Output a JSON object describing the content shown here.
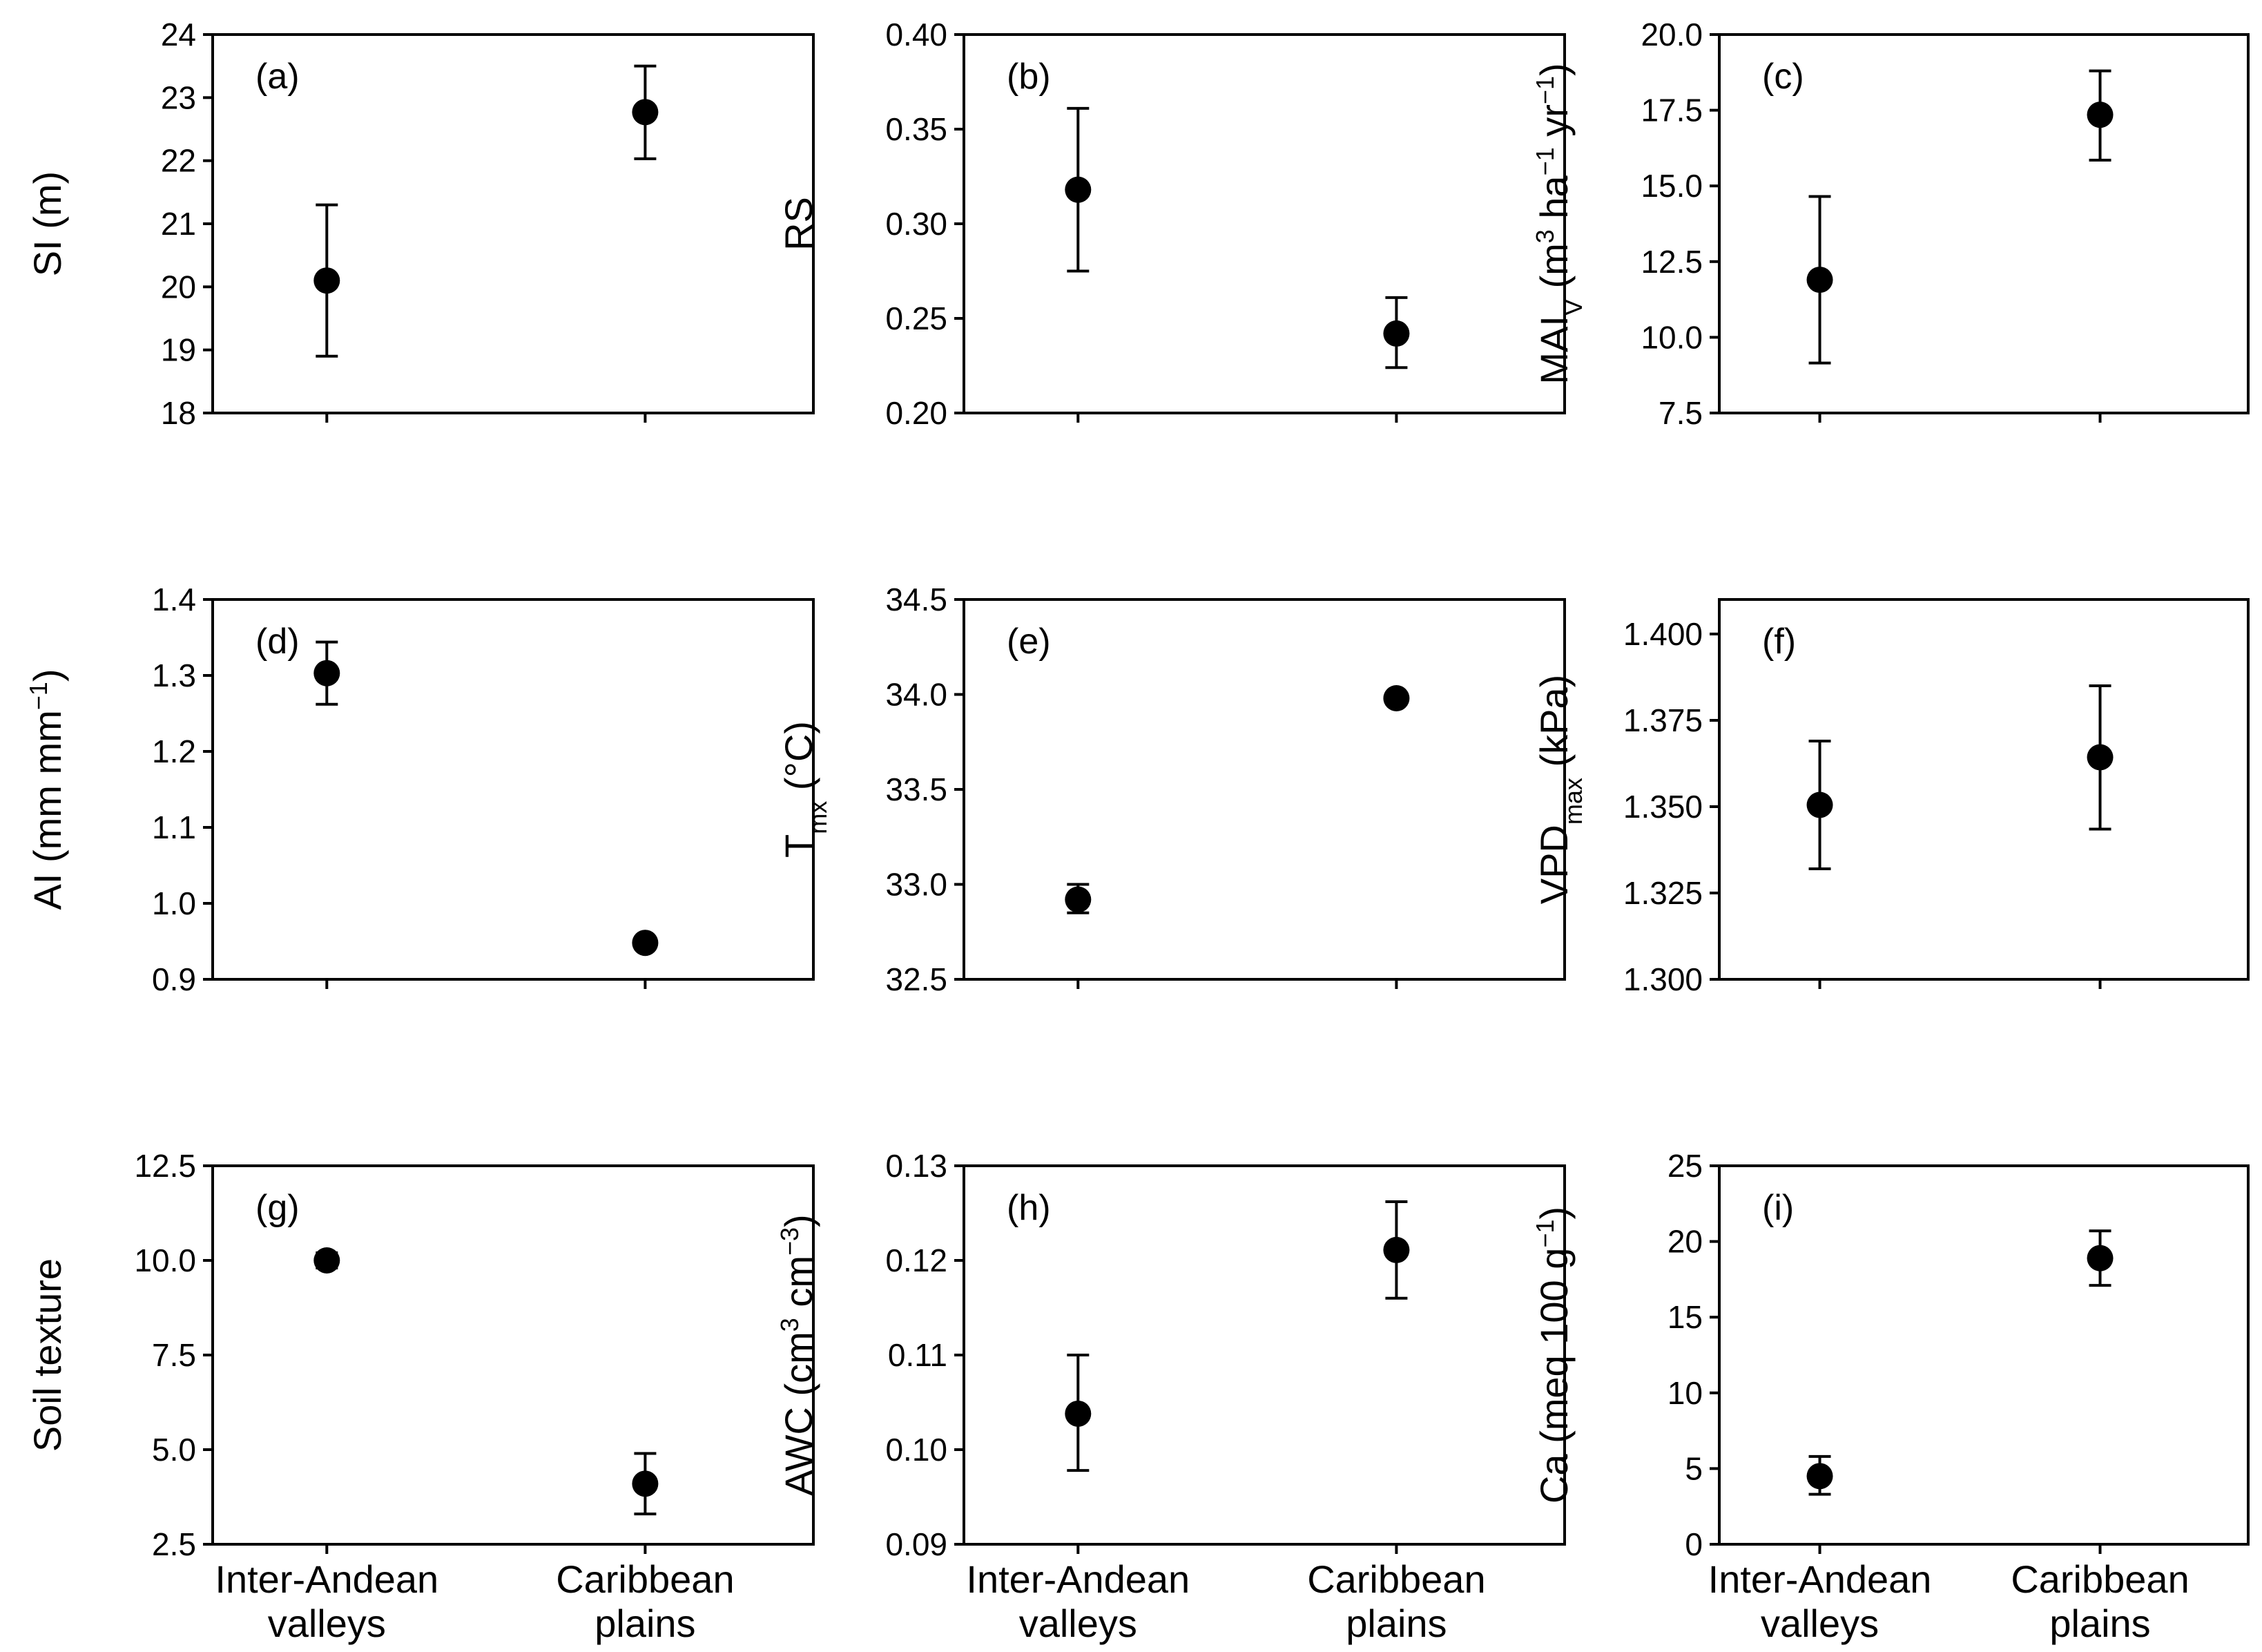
{
  "chart_data": [
    {
      "type": "scatter",
      "panel": "(a)",
      "ylabel": {
        "parts": [
          {
            "t": "SI (m)"
          }
        ]
      },
      "ylim": [
        18,
        24
      ],
      "yticks": [
        "18",
        "19",
        "20",
        "21",
        "22",
        "23",
        "24"
      ],
      "categories": [
        "Inter-Andean valleys",
        "Caribbean plains"
      ],
      "values": [
        20.1,
        22.77
      ],
      "err_low": [
        18.9,
        22.03
      ],
      "err_high": [
        21.3,
        23.5
      ]
    },
    {
      "type": "scatter",
      "panel": "(b)",
      "ylabel": {
        "parts": [
          {
            "t": "RS"
          }
        ]
      },
      "ylim": [
        0.2,
        0.4
      ],
      "yticks": [
        "0.20",
        "0.25",
        "0.30",
        "0.35",
        "0.40"
      ],
      "categories": [
        "Inter-Andean valleys",
        "Caribbean plains"
      ],
      "values": [
        0.318,
        0.242
      ],
      "err_low": [
        0.275,
        0.224
      ],
      "err_high": [
        0.361,
        0.261
      ]
    },
    {
      "type": "scatter",
      "panel": "(c)",
      "ylabel": {
        "parts": [
          {
            "t": "MAI"
          },
          {
            "t": "V",
            "s": "sub"
          },
          {
            "t": " (m"
          },
          {
            "t": "3",
            "s": "sup"
          },
          {
            "t": " ha"
          },
          {
            "t": "−1",
            "s": "sup"
          },
          {
            "t": " yr"
          },
          {
            "t": "−1",
            "s": "sup"
          },
          {
            "t": ")"
          }
        ]
      },
      "ylim": [
        7.5,
        20
      ],
      "yticks": [
        "7.5",
        "10.0",
        "12.5",
        "15.0",
        "17.5",
        "20.0"
      ],
      "categories": [
        "Inter-Andean valleys",
        "Caribbean plains"
      ],
      "values": [
        11.9,
        17.35
      ],
      "err_low": [
        9.15,
        15.85
      ],
      "err_high": [
        14.65,
        18.8
      ]
    },
    {
      "type": "scatter",
      "panel": "(d)",
      "ylabel": {
        "parts": [
          {
            "t": "AI (mm mm"
          },
          {
            "t": "−1",
            "s": "sup"
          },
          {
            "t": ")"
          }
        ]
      },
      "ylim": [
        0.9,
        1.4
      ],
      "yticks": [
        "0.9",
        "1.0",
        "1.1",
        "1.2",
        "1.3",
        "1.4"
      ],
      "categories": [
        "Inter-Andean valleys",
        "Caribbean plains"
      ],
      "values": [
        1.303,
        0.948
      ],
      "err_low": [
        1.262,
        0.948
      ],
      "err_high": [
        1.344,
        0.948
      ]
    },
    {
      "type": "scatter",
      "panel": "(e)",
      "ylabel": {
        "parts": [
          {
            "t": "T"
          },
          {
            "t": "mx",
            "s": "sub"
          },
          {
            "t": " (°C)"
          }
        ]
      },
      "ylim": [
        32.5,
        34.5
      ],
      "yticks": [
        "32.5",
        "33.0",
        "33.5",
        "34.0",
        "34.5"
      ],
      "categories": [
        "Inter-Andean valleys",
        "Caribbean plains"
      ],
      "values": [
        32.92,
        33.98
      ],
      "err_low": [
        32.85,
        33.98
      ],
      "err_high": [
        33.0,
        33.98
      ]
    },
    {
      "type": "scatter",
      "panel": "(f)",
      "ylabel": {
        "parts": [
          {
            "t": "VPD"
          },
          {
            "t": "max",
            "s": "sub"
          },
          {
            "t": " (kPa)"
          }
        ]
      },
      "ylim": [
        1.3,
        1.41
      ],
      "yticks": [
        "1.300",
        "1.325",
        "1.350",
        "1.375",
        "1.400"
      ],
      "categories": [
        "Inter-Andean valleys",
        "Caribbean plains"
      ],
      "values": [
        1.3505,
        1.3643
      ],
      "err_low": [
        1.332,
        1.3435
      ],
      "err_high": [
        1.369,
        1.385
      ]
    },
    {
      "type": "scatter",
      "panel": "(g)",
      "ylabel": {
        "parts": [
          {
            "t": "Soil texture"
          }
        ]
      },
      "ylim": [
        2.5,
        12.5
      ],
      "yticks": [
        "2.5",
        "5.0",
        "7.5",
        "10.0",
        "12.5"
      ],
      "categories": [
        "Inter-Andean valleys",
        "Caribbean plains"
      ],
      "values": [
        10.0,
        4.1
      ],
      "err_low": [
        9.8,
        3.3
      ],
      "err_high": [
        10.2,
        4.9
      ]
    },
    {
      "type": "scatter",
      "panel": "(h)",
      "ylabel": {
        "parts": [
          {
            "t": "AWC (cm"
          },
          {
            "t": "3",
            "s": "sup"
          },
          {
            "t": " cm"
          },
          {
            "t": "−3",
            "s": "sup"
          },
          {
            "t": ")"
          }
        ]
      },
      "ylim": [
        0.09,
        0.13
      ],
      "yticks": [
        "0.09",
        "0.10",
        "0.11",
        "0.12",
        "0.13"
      ],
      "categories": [
        "Inter-Andean valleys",
        "Caribbean plains"
      ],
      "values": [
        0.1038,
        0.1211
      ],
      "err_low": [
        0.0978,
        0.116
      ],
      "err_high": [
        0.11,
        0.1262
      ]
    },
    {
      "type": "scatter",
      "panel": "(i)",
      "ylabel": {
        "parts": [
          {
            "t": "Ca (meq 100 g"
          },
          {
            "t": "−1",
            "s": "sup"
          },
          {
            "t": ")"
          }
        ]
      },
      "ylim": [
        0,
        25
      ],
      "yticks": [
        "0",
        "5",
        "10",
        "15",
        "20",
        "25"
      ],
      "categories": [
        "Inter-Andean valleys",
        "Caribbean plains"
      ],
      "values": [
        4.5,
        18.9
      ],
      "err_low": [
        3.3,
        17.1
      ],
      "err_high": [
        5.8,
        20.7
      ]
    }
  ],
  "x_category_labels": [
    {
      "line1": "Inter-Andean",
      "line2": "valleys"
    },
    {
      "line1": "Caribbean",
      "line2": "plains"
    }
  ]
}
